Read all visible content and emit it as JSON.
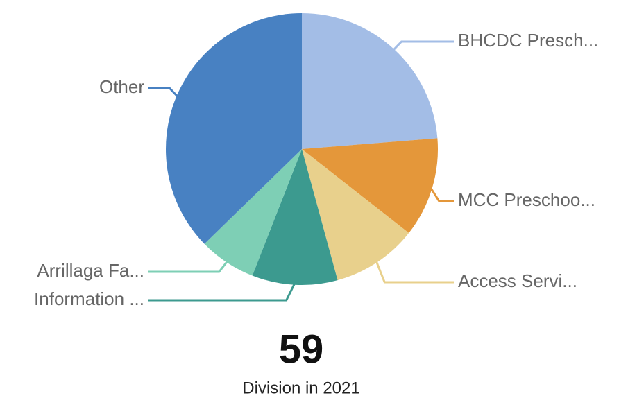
{
  "chart_data": {
    "type": "pie",
    "categories": [
      "BHCDC Presch...",
      "MCC Preschoo...",
      "Access Servi...",
      "Information ...",
      "Arrillaga Fa...",
      "Other"
    ],
    "values": [
      14,
      7,
      6,
      6,
      4,
      22
    ],
    "colors": [
      "#a3bde6",
      "#e4973a",
      "#e8d08c",
      "#3c9a8f",
      "#7ecfb5",
      "#4881c2"
    ],
    "kpi_value": 59,
    "kpi_label": "Division in 2021"
  }
}
